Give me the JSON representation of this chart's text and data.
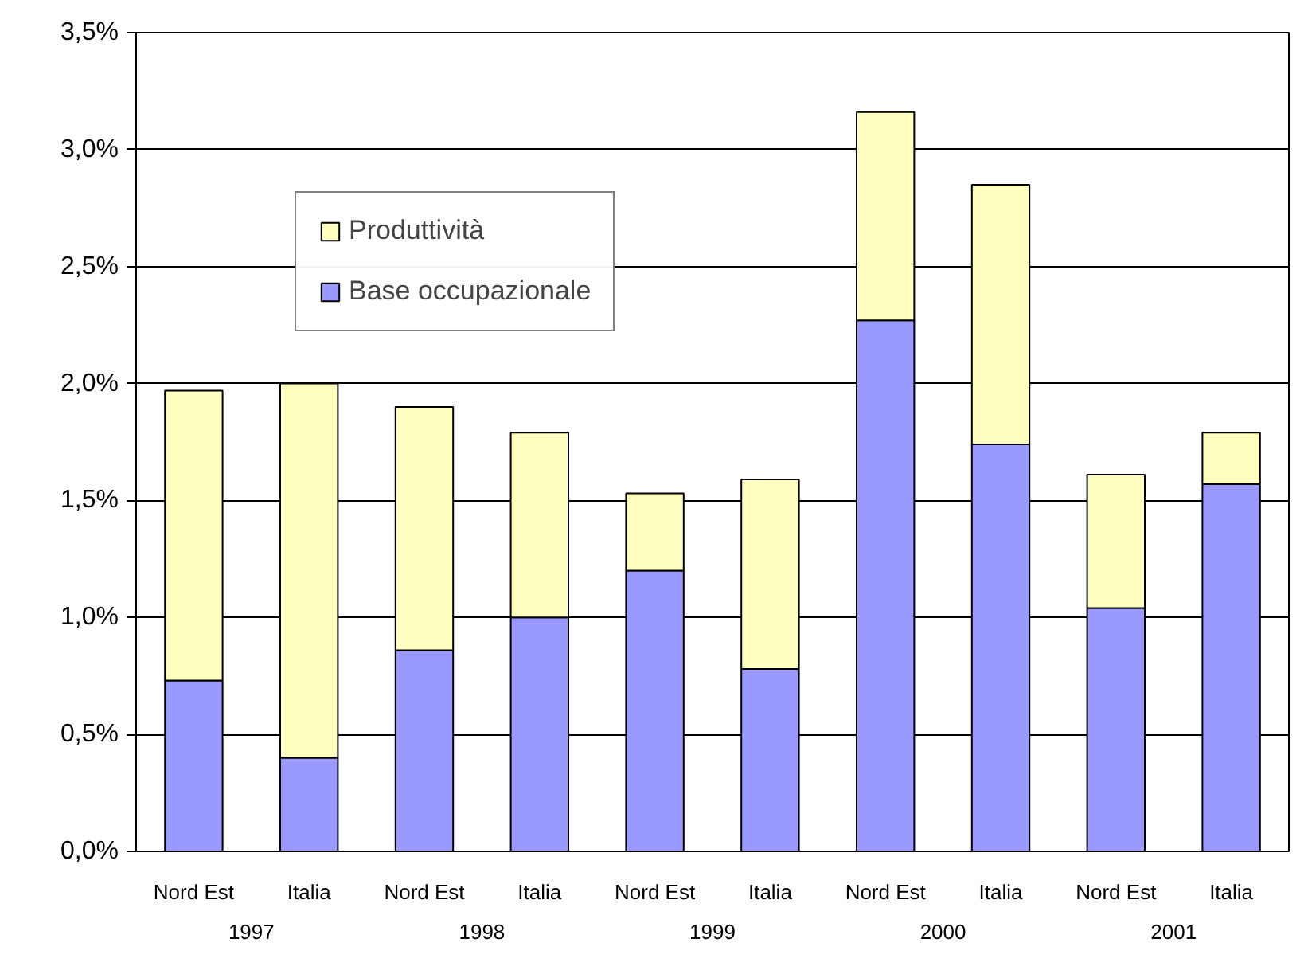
{
  "chart_data": {
    "type": "bar",
    "stacked": true,
    "categories": [
      "Nord Est",
      "Italia",
      "Nord Est",
      "Italia",
      "Nord Est",
      "Italia",
      "Nord Est",
      "Italia",
      "Nord Est",
      "Italia"
    ],
    "series": [
      {
        "name": "Base occupazionale",
        "color": "#9999ff",
        "values": [
          0.73,
          0.4,
          0.86,
          1.0,
          1.2,
          0.78,
          2.27,
          1.74,
          1.04,
          1.57
        ]
      },
      {
        "name": "Produttività",
        "color": "#ffffc0",
        "values": [
          1.24,
          1.6,
          1.04,
          0.79,
          0.33,
          0.81,
          0.89,
          1.11,
          0.57,
          0.22
        ]
      }
    ],
    "ylim": [
      0,
      3.5
    ],
    "yticks": [
      {
        "value": 0,
        "label": "0,0%"
      },
      {
        "value": 0.5,
        "label": "0,5%"
      },
      {
        "value": 1,
        "label": "1,0%"
      },
      {
        "value": 1.5,
        "label": "1,5%"
      },
      {
        "value": 2,
        "label": "2,0%"
      },
      {
        "value": 2.5,
        "label": "2,5%"
      },
      {
        "value": 3,
        "label": "3,0%"
      },
      {
        "value": 3.5,
        "label": "3,5%"
      }
    ],
    "grid": "y",
    "legend": "top left",
    "annotations": [
      "1997",
      "1998",
      "1999",
      "2000",
      "2001"
    ]
  }
}
